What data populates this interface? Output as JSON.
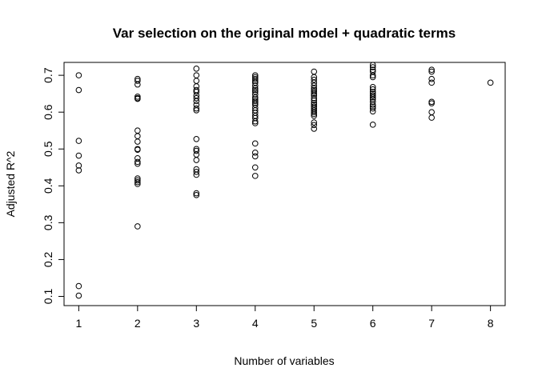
{
  "chart_data": {
    "type": "scatter",
    "title": "Var selection on the original model + quadratic terms",
    "xlabel": "Number of variables",
    "ylabel": "Adjusted R^2",
    "xlim": [
      0.75,
      8.25
    ],
    "ylim": [
      0.075,
      0.735
    ],
    "xticks": [
      1,
      2,
      3,
      4,
      5,
      6,
      7,
      8
    ],
    "yticks": [
      0.1,
      0.2,
      0.3,
      0.4,
      0.5,
      0.6,
      0.7
    ],
    "grid": false,
    "marker": "open-circle",
    "points": [
      [
        1,
        0.7
      ],
      [
        1,
        0.66
      ],
      [
        1,
        0.522
      ],
      [
        1,
        0.482
      ],
      [
        1,
        0.455
      ],
      [
        1,
        0.442
      ],
      [
        1,
        0.128
      ],
      [
        1,
        0.102
      ],
      [
        2,
        0.69
      ],
      [
        2,
        0.685
      ],
      [
        2,
        0.675
      ],
      [
        2,
        0.642
      ],
      [
        2,
        0.638
      ],
      [
        2,
        0.636
      ],
      [
        2,
        0.55
      ],
      [
        2,
        0.535
      ],
      [
        2,
        0.52
      ],
      [
        2,
        0.5
      ],
      [
        2,
        0.498
      ],
      [
        2,
        0.475
      ],
      [
        2,
        0.465
      ],
      [
        2,
        0.46
      ],
      [
        2,
        0.42
      ],
      [
        2,
        0.415
      ],
      [
        2,
        0.41
      ],
      [
        2,
        0.405
      ],
      [
        2,
        0.29
      ],
      [
        3,
        0.718
      ],
      [
        3,
        0.7
      ],
      [
        3,
        0.685
      ],
      [
        3,
        0.67
      ],
      [
        3,
        0.66
      ],
      [
        3,
        0.655
      ],
      [
        3,
        0.645
      ],
      [
        3,
        0.638
      ],
      [
        3,
        0.63
      ],
      [
        3,
        0.62
      ],
      [
        3,
        0.61
      ],
      [
        3,
        0.605
      ],
      [
        3,
        0.527
      ],
      [
        3,
        0.5
      ],
      [
        3,
        0.495
      ],
      [
        3,
        0.485
      ],
      [
        3,
        0.47
      ],
      [
        3,
        0.445
      ],
      [
        3,
        0.438
      ],
      [
        3,
        0.43
      ],
      [
        3,
        0.38
      ],
      [
        3,
        0.375
      ],
      [
        4,
        0.7
      ],
      [
        4,
        0.695
      ],
      [
        4,
        0.69
      ],
      [
        4,
        0.685
      ],
      [
        4,
        0.68
      ],
      [
        4,
        0.672
      ],
      [
        4,
        0.665
      ],
      [
        4,
        0.66
      ],
      [
        4,
        0.655
      ],
      [
        4,
        0.648
      ],
      [
        4,
        0.64
      ],
      [
        4,
        0.635
      ],
      [
        4,
        0.63
      ],
      [
        4,
        0.625
      ],
      [
        4,
        0.62
      ],
      [
        4,
        0.612
      ],
      [
        4,
        0.605
      ],
      [
        4,
        0.598
      ],
      [
        4,
        0.59
      ],
      [
        4,
        0.584
      ],
      [
        4,
        0.575
      ],
      [
        4,
        0.57
      ],
      [
        4,
        0.515
      ],
      [
        4,
        0.49
      ],
      [
        4,
        0.48
      ],
      [
        4,
        0.45
      ],
      [
        4,
        0.427
      ],
      [
        5,
        0.71
      ],
      [
        5,
        0.695
      ],
      [
        5,
        0.688
      ],
      [
        5,
        0.68
      ],
      [
        5,
        0.672
      ],
      [
        5,
        0.665
      ],
      [
        5,
        0.66
      ],
      [
        5,
        0.655
      ],
      [
        5,
        0.65
      ],
      [
        5,
        0.645
      ],
      [
        5,
        0.638
      ],
      [
        5,
        0.632
      ],
      [
        5,
        0.625
      ],
      [
        5,
        0.62
      ],
      [
        5,
        0.615
      ],
      [
        5,
        0.61
      ],
      [
        5,
        0.605
      ],
      [
        5,
        0.6
      ],
      [
        5,
        0.595
      ],
      [
        5,
        0.59
      ],
      [
        5,
        0.572
      ],
      [
        5,
        0.565
      ],
      [
        5,
        0.555
      ],
      [
        6,
        0.728
      ],
      [
        6,
        0.722
      ],
      [
        6,
        0.715
      ],
      [
        6,
        0.71
      ],
      [
        6,
        0.7
      ],
      [
        6,
        0.695
      ],
      [
        6,
        0.668
      ],
      [
        6,
        0.662
      ],
      [
        6,
        0.655
      ],
      [
        6,
        0.65
      ],
      [
        6,
        0.645
      ],
      [
        6,
        0.64
      ],
      [
        6,
        0.635
      ],
      [
        6,
        0.628
      ],
      [
        6,
        0.62
      ],
      [
        6,
        0.615
      ],
      [
        6,
        0.61
      ],
      [
        6,
        0.602
      ],
      [
        6,
        0.566
      ],
      [
        7,
        0.715
      ],
      [
        7,
        0.71
      ],
      [
        7,
        0.69
      ],
      [
        7,
        0.68
      ],
      [
        7,
        0.628
      ],
      [
        7,
        0.624
      ],
      [
        7,
        0.6
      ],
      [
        7,
        0.585
      ],
      [
        8,
        0.68
      ]
    ]
  }
}
